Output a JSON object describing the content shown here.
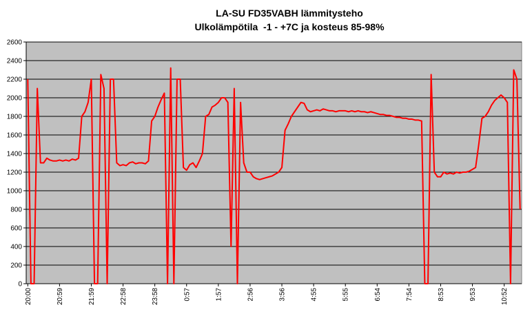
{
  "chart_data": {
    "type": "line",
    "title": "LA-SU FD35VABH lämmitysteho",
    "subtitle": "Ulkolämpötila  -1 - +7C ja kosteus 85-98%",
    "categories": [
      "20:00",
      null,
      null,
      null,
      null,
      null,
      null,
      null,
      null,
      null,
      "20:59",
      null,
      null,
      null,
      null,
      null,
      null,
      null,
      null,
      null,
      "21:59",
      null,
      null,
      null,
      null,
      null,
      null,
      null,
      null,
      null,
      "22:58",
      null,
      null,
      null,
      null,
      null,
      null,
      null,
      null,
      null,
      "23:58",
      null,
      null,
      null,
      null,
      null,
      null,
      null,
      null,
      null,
      "0:57",
      null,
      null,
      null,
      null,
      null,
      null,
      null,
      null,
      null,
      "1:57",
      null,
      null,
      null,
      null,
      null,
      null,
      null,
      null,
      null,
      "2:56",
      null,
      null,
      null,
      null,
      null,
      null,
      null,
      null,
      null,
      "3:56",
      null,
      null,
      null,
      null,
      null,
      null,
      null,
      null,
      null,
      "4:55",
      null,
      null,
      null,
      null,
      null,
      null,
      null,
      null,
      null,
      "5:55",
      null,
      null,
      null,
      null,
      null,
      null,
      null,
      null,
      null,
      "6:54",
      null,
      null,
      null,
      null,
      null,
      null,
      null,
      null,
      null,
      "7:54",
      null,
      null,
      null,
      null,
      null,
      null,
      null,
      null,
      null,
      "8:53",
      null,
      null,
      null,
      null,
      null,
      null,
      null,
      null,
      null,
      "9:53",
      null,
      null,
      null,
      null,
      null,
      null,
      null,
      null,
      null,
      "10:52",
      null,
      null,
      null,
      null,
      null
    ],
    "series": [
      {
        "color": "#ff0000",
        "values": [
          2200,
          0,
          0,
          2100,
          1300,
          1300,
          1350,
          1330,
          1320,
          1320,
          1330,
          1320,
          1330,
          1320,
          1340,
          1330,
          1350,
          1800,
          1850,
          1950,
          2200,
          0,
          0,
          2250,
          2100,
          0,
          2200,
          2200,
          1300,
          1270,
          1280,
          1270,
          1300,
          1310,
          1290,
          1300,
          1300,
          1290,
          1320,
          1750,
          1800,
          1900,
          1980,
          2050,
          0,
          2320,
          0,
          2200,
          2200,
          1250,
          1220,
          1280,
          1300,
          1250,
          1320,
          1400,
          1800,
          1820,
          1900,
          1920,
          1950,
          2000,
          2000,
          1950,
          400,
          2100,
          0,
          1950,
          1300,
          1200,
          1200,
          1150,
          1130,
          1120,
          1130,
          1140,
          1150,
          1160,
          1180,
          1200,
          1250,
          1650,
          1720,
          1800,
          1850,
          1900,
          1950,
          1940,
          1870,
          1850,
          1860,
          1870,
          1860,
          1880,
          1870,
          1860,
          1860,
          1850,
          1860,
          1860,
          1860,
          1850,
          1860,
          1850,
          1860,
          1850,
          1850,
          1840,
          1850,
          1840,
          1830,
          1820,
          1820,
          1810,
          1810,
          1800,
          1790,
          1790,
          1780,
          1780,
          1770,
          1770,
          1760,
          1760,
          1750,
          0,
          0,
          2250,
          1200,
          1150,
          1150,
          1200,
          1180,
          1190,
          1180,
          1200,
          1190,
          1200,
          1200,
          1210,
          1230,
          1250,
          1500,
          1780,
          1800,
          1850,
          1920,
          1970,
          2000,
          2030,
          2000,
          1950,
          0,
          2300,
          2200,
          800
        ]
      }
    ],
    "ylim": [
      0,
      2600
    ],
    "yticks": [
      0,
      200,
      400,
      600,
      800,
      1000,
      1200,
      1400,
      1600,
      1800,
      2000,
      2200,
      2400,
      2600
    ],
    "grid": true,
    "plot_background": "#c0c0c0"
  }
}
